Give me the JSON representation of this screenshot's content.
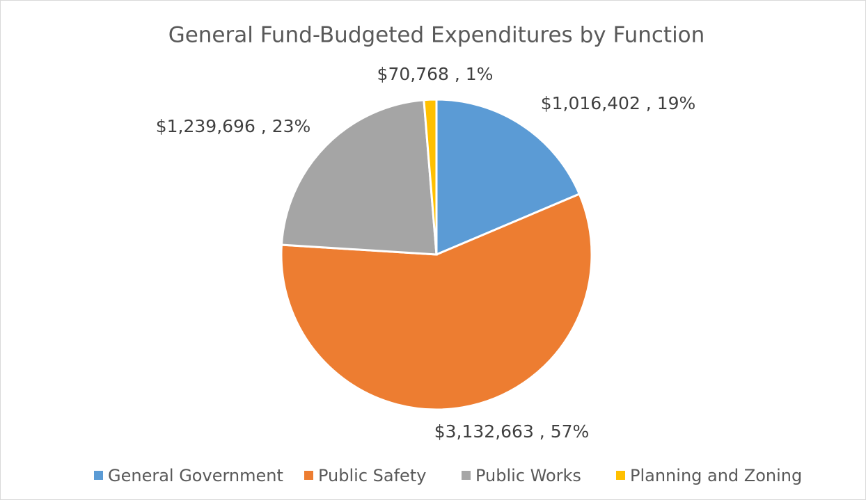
{
  "chart_data": {
    "type": "pie",
    "title": "General Fund-Budgeted Expenditures by Function",
    "categories": [
      "General Government",
      "Public Safety",
      "Public Works",
      "Planning and Zoning"
    ],
    "values": [
      1016402,
      3132663,
      1239696,
      70768
    ],
    "value_labels": [
      "$1,016,402 , 19%",
      "$3,132,663 , 57%",
      "$1,239,696 , 23%",
      "$70,768 , 1%"
    ],
    "colors": [
      "#5b9bd5",
      "#ed7d31",
      "#a5a5a5",
      "#ffc000"
    ],
    "legend": "bottom"
  }
}
